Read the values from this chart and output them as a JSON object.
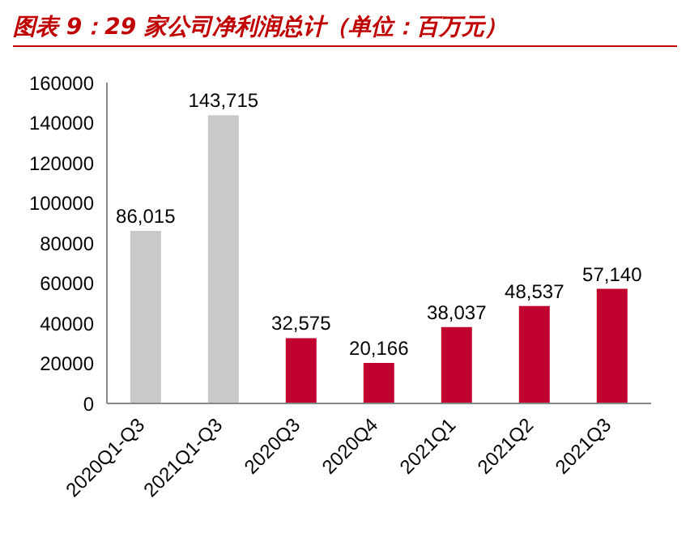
{
  "chart_data": {
    "type": "bar",
    "title": "图表 9：29 家公司净利润总计（单位：百万元）",
    "categories": [
      "2020Q1-Q3",
      "2021Q1-Q3",
      "2020Q3",
      "2020Q4",
      "2021Q1",
      "2021Q2",
      "2021Q3"
    ],
    "values": [
      86015,
      143715,
      32575,
      20166,
      38037,
      48537,
      57140
    ],
    "colors": [
      "#c9c9c9",
      "#c9c9c9",
      "#c0002f",
      "#c0002f",
      "#c0002f",
      "#c0002f",
      "#c0002f"
    ],
    "value_labels": [
      "86,015",
      "143,715",
      "32,575",
      "20,166",
      "38,037",
      "48,537",
      "57,140"
    ],
    "ylim": [
      0,
      160000
    ],
    "yticks": [
      0,
      20000,
      40000,
      60000,
      80000,
      100000,
      120000,
      140000,
      160000
    ],
    "grid": false
  }
}
